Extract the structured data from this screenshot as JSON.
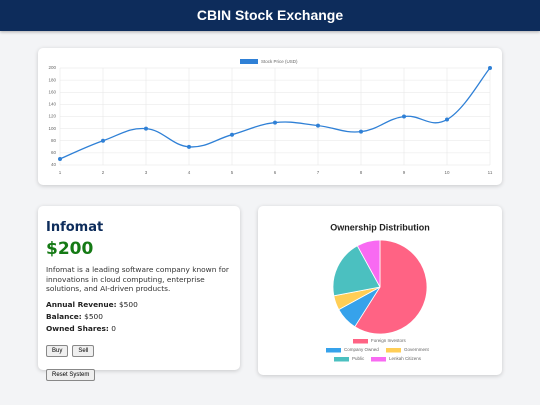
{
  "header": {
    "title": "CBIN Stock Exchange"
  },
  "chart_data": [
    {
      "type": "line",
      "categories": [
        "1",
        "2",
        "3",
        "4",
        "5",
        "6",
        "7",
        "8",
        "9",
        "10",
        "11"
      ],
      "series": [
        {
          "name": "Stock Price (USD)",
          "color": "#2f80d6",
          "values": [
            50,
            80,
            100,
            70,
            90,
            110,
            105,
            95,
            120,
            115,
            200
          ]
        }
      ],
      "ylim": [
        40,
        200
      ],
      "yticks": [
        40,
        60,
        80,
        100,
        120,
        140,
        160,
        180,
        200
      ],
      "grid": true
    },
    {
      "type": "pie",
      "title": "Ownership Distribution",
      "categories": [
        "Foreign Investors",
        "Company Owned",
        "Government",
        "Public",
        "Lenkah Citizens"
      ],
      "values": [
        59,
        8,
        5,
        20,
        8
      ],
      "colors": [
        "#ff6384",
        "#36a2eb",
        "#ffce56",
        "#4bc0c0",
        "#f86af2"
      ]
    }
  ],
  "stock": {
    "name": "Infomat",
    "price": "$200",
    "description": "Infomat is a leading software company known for innovations in cloud computing, enterprise solutions, and AI-driven products.",
    "annual_revenue": {
      "label": "Annual Revenue:",
      "value": "$500"
    },
    "balance": {
      "label": "Balance:",
      "value": "$500"
    },
    "owned_shares": {
      "label": "Owned Shares:",
      "value": "0"
    }
  },
  "buttons": {
    "buy": "Buy",
    "sell": "Sell",
    "reset": "Reset System"
  }
}
